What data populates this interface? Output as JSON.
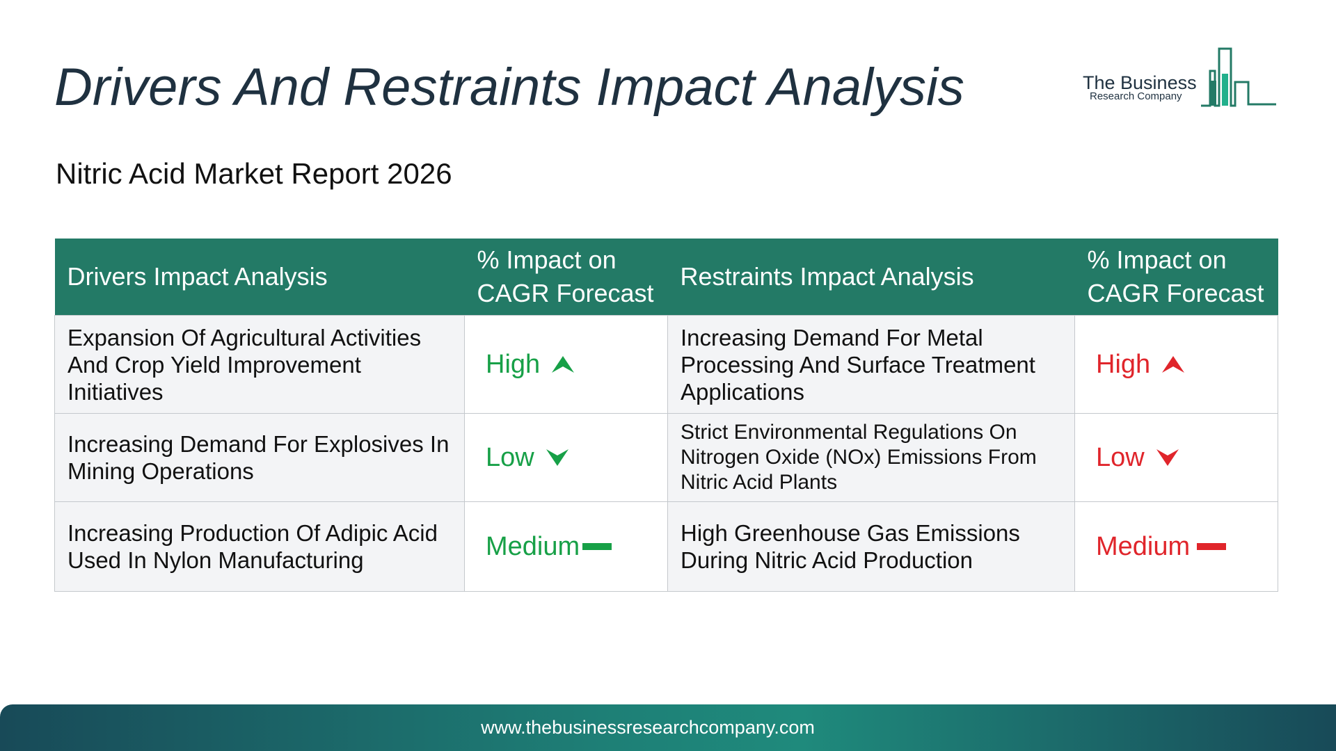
{
  "header": {
    "title": "Drivers And Restraints Impact Analysis",
    "subtitle": "Nitric Acid Market Report 2026",
    "logo_line1": "The Business",
    "logo_line2": "Research Company"
  },
  "table": {
    "columns": [
      "Drivers Impact Analysis",
      "% Impact on CAGR Forecast",
      "Restraints Impact Analysis",
      "% Impact on CAGR Forecast"
    ],
    "rows": [
      {
        "driver": "Expansion Of Agricultural Activities And Crop Yield Improvement Initiatives",
        "driver_impact": "High",
        "restraint": "Increasing Demand For Metal Processing And Surface Treatment Applications",
        "restraint_impact": "High"
      },
      {
        "driver": "Increasing Demand For Explosives In Mining Operations",
        "driver_impact": "Low",
        "restraint": "Strict Environmental Regulations On Nitrogen Oxide (NOx) Emissions From Nitric Acid Plants",
        "restraint_impact": "Low"
      },
      {
        "driver": "Increasing Production Of Adipic Acid Used In Nylon Manufacturing",
        "driver_impact": "Medium",
        "restraint": "High Greenhouse Gas Emissions During Nitric Acid Production",
        "restraint_impact": "Medium"
      }
    ]
  },
  "icons": {
    "high": "arrow-up-icon",
    "low": "arrow-down-icon",
    "medium": "dash-icon"
  },
  "colors": {
    "header_bg": "#237a66",
    "driver_level": "#17a047",
    "restraint_level": "#e0252b",
    "title": "#1f3140"
  },
  "footer": {
    "url": "www.thebusinessresearchcompany.com"
  }
}
